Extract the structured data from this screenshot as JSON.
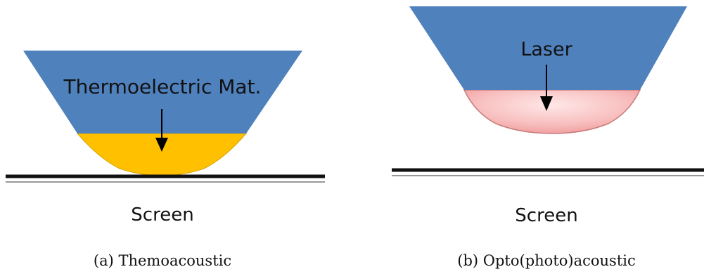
{
  "panels": [
    {
      "device_label": "Thermoelectric Mat.",
      "target_label": "Screen",
      "caption": "(a) Themoacoustic",
      "colors": {
        "body": "#4f81bd",
        "tip": "#ffc000",
        "tip_edge": "#d9a300"
      }
    },
    {
      "device_label": "Laser",
      "target_label": "Screen",
      "caption": "(b) Opto(photo)acoustic",
      "colors": {
        "body": "#4f81bd",
        "tip_light": "#ffe7e7",
        "tip_dark": "#f4a3a3",
        "tip_edge": "#c97c7c"
      }
    }
  ]
}
